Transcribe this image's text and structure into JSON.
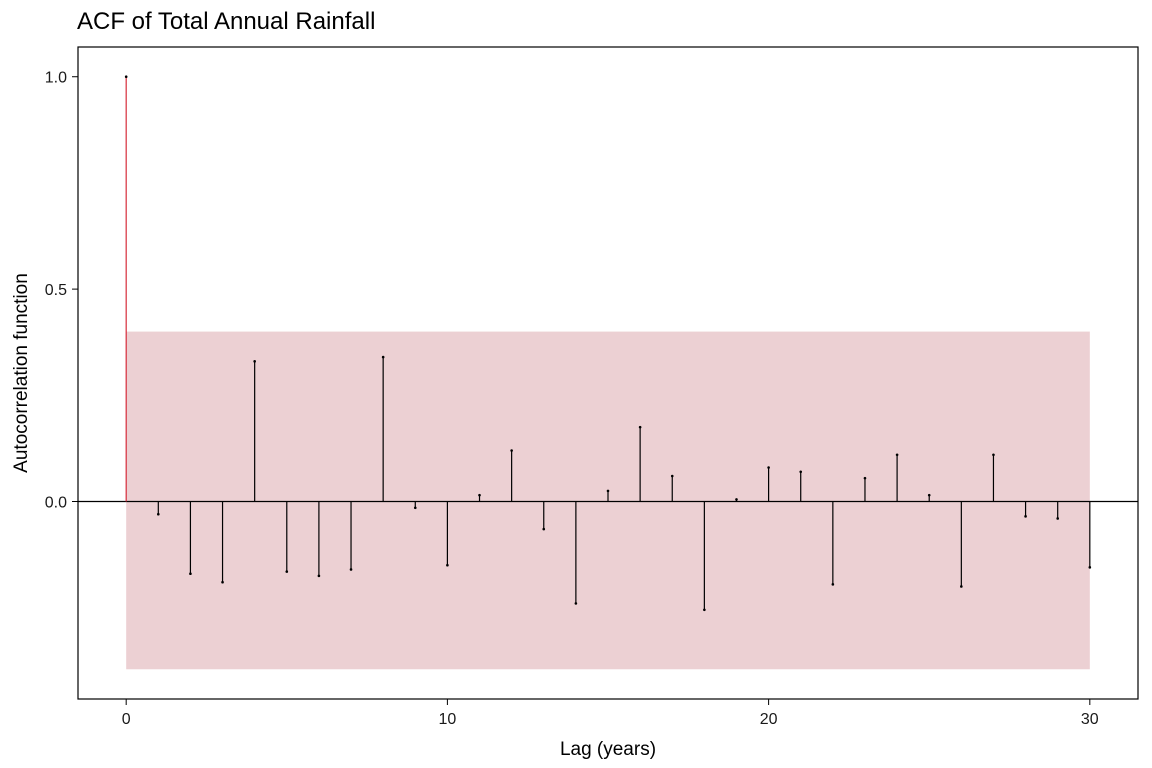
{
  "chart_data": {
    "type": "bar",
    "title": "ACF of Total Annual Rainfall",
    "xlabel": "Lag (years)",
    "ylabel": "Autocorrelation function",
    "x_ticks": [
      0,
      10,
      20,
      30
    ],
    "y_ticks": [
      0.0,
      0.5,
      1.0
    ],
    "x_tick_labels": [
      "0",
      "10",
      "20",
      "30"
    ],
    "y_tick_labels": [
      "0.0",
      "0.5",
      "1.0"
    ],
    "xlim": [
      -1.5,
      31.5
    ],
    "ylim": [
      -0.465,
      1.07
    ],
    "lags": [
      0,
      1,
      2,
      3,
      4,
      5,
      6,
      7,
      8,
      9,
      10,
      11,
      12,
      13,
      14,
      15,
      16,
      17,
      18,
      19,
      20,
      21,
      22,
      23,
      24,
      25,
      26,
      27,
      28,
      29,
      30
    ],
    "values": [
      1.0,
      -0.03,
      -0.17,
      -0.19,
      0.33,
      -0.165,
      -0.175,
      -0.16,
      0.34,
      -0.015,
      -0.15,
      0.015,
      0.12,
      -0.065,
      -0.24,
      0.025,
      0.175,
      0.06,
      -0.255,
      0.005,
      0.08,
      0.07,
      -0.195,
      0.055,
      0.11,
      0.015,
      -0.2,
      0.11,
      -0.035,
      -0.04,
      -0.155
    ],
    "confidence_band": {
      "lower": -0.395,
      "upper": 0.4,
      "from_lag": 0,
      "to_lag": 30
    },
    "colors": {
      "band": "#ecd0d3",
      "lag0_line": "#d62b3a",
      "lines": "#000000",
      "zero_line": "#000000"
    },
    "grid": false,
    "legend": "none"
  }
}
